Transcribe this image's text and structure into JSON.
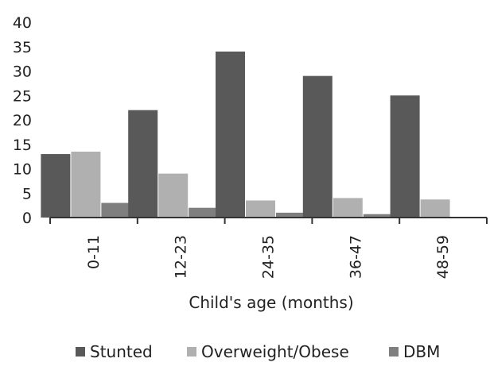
{
  "chart_data": {
    "type": "bar",
    "title": "",
    "xlabel": "Child's age (months)",
    "ylabel": "",
    "ylim": [
      0,
      40
    ],
    "yticks": [
      0,
      5,
      10,
      15,
      20,
      25,
      30,
      35,
      40
    ],
    "grid": false,
    "legend_position": "bottom",
    "categories": [
      "0-11",
      "12-23",
      "24-35",
      "36-47",
      "48-59"
    ],
    "series": [
      {
        "name": "Stunted",
        "color": "#595959",
        "values": [
          13,
          22,
          34,
          29,
          25
        ]
      },
      {
        "name": "Overweight/Obese",
        "color": "#b0b0b0",
        "values": [
          13.5,
          9,
          3.5,
          4,
          3.7
        ]
      },
      {
        "name": "DBM",
        "color": "#7f7f7f",
        "values": [
          3,
          2,
          1,
          0.7,
          0
        ]
      }
    ]
  }
}
